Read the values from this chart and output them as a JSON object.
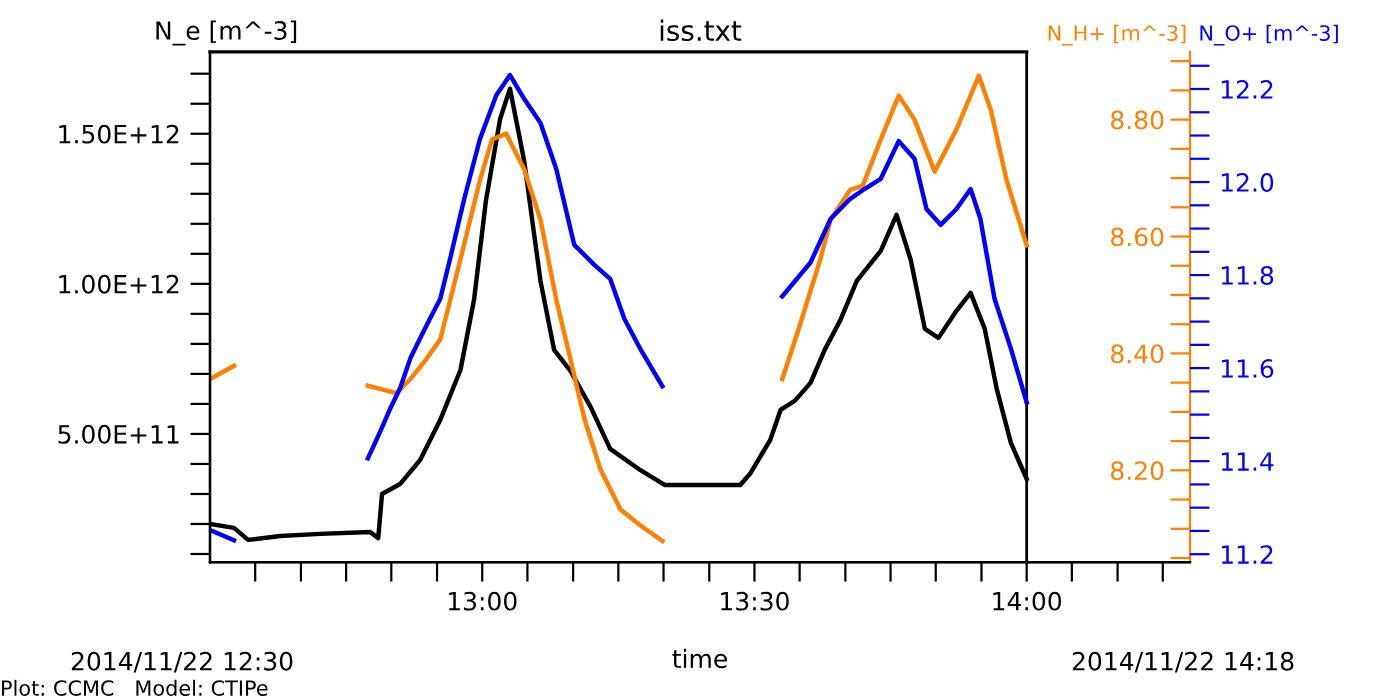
{
  "chart_data": {
    "type": "line",
    "title": "iss.txt",
    "xlabel": "time",
    "ylabel": "N_e [m^-3]",
    "y2label": "N_H+ [m^-3]",
    "y3label": "N_O+ [m^-3]",
    "annotations": [
      "2014/11/22 12:30",
      "2014/11/22 14:18",
      "Plot: CCMC   Model: CTIPe"
    ],
    "xlim": [
      12.5,
      14.3
    ],
    "xticks": [
      {
        "value": 12.583,
        "label": null
      },
      {
        "value": 12.667,
        "label": null
      },
      {
        "value": 12.75,
        "label": null
      },
      {
        "value": 12.833,
        "label": null
      },
      {
        "value": 12.917,
        "label": null
      },
      {
        "value": 13,
        "label": "13:00"
      },
      {
        "value": 13.083,
        "label": null
      },
      {
        "value": 13.167,
        "label": null
      },
      {
        "value": 13.25,
        "label": null
      },
      {
        "value": 13.333,
        "label": null
      },
      {
        "value": 13.417,
        "label": null
      },
      {
        "value": 13.5,
        "label": "13:30"
      },
      {
        "value": 13.583,
        "label": null
      },
      {
        "value": 13.667,
        "label": null
      },
      {
        "value": 13.75,
        "label": null
      },
      {
        "value": 13.833,
        "label": null
      },
      {
        "value": 13.917,
        "label": null
      },
      {
        "value": 14,
        "label": "14:00"
      },
      {
        "value": 14.083,
        "label": null
      },
      {
        "value": 14.167,
        "label": null
      },
      {
        "value": 14.25,
        "label": null
      }
    ],
    "ylim": [
      73000000000.0,
      1773000000000.0
    ],
    "yticks": [
      {
        "value": 100000000000.0,
        "label": null
      },
      {
        "value": 200000000000.0,
        "label": null
      },
      {
        "value": 300000000000.0,
        "label": null
      },
      {
        "value": 400000000000.0,
        "label": null
      },
      {
        "value": 500000000000.0,
        "label": "5.00E+11"
      },
      {
        "value": 600000000000.0,
        "label": null
      },
      {
        "value": 700000000000.0,
        "label": null
      },
      {
        "value": 800000000000.0,
        "label": null
      },
      {
        "value": 900000000000.0,
        "label": null
      },
      {
        "value": 1000000000000.0,
        "label": "1.00E+12"
      },
      {
        "value": 1100000000000.0,
        "label": null
      },
      {
        "value": 1200000000000.0,
        "label": null
      },
      {
        "value": 1300000000000.0,
        "label": null
      },
      {
        "value": 1400000000000.0,
        "label": null
      },
      {
        "value": 1500000000000.0,
        "label": "1.50E+12"
      },
      {
        "value": 1600000000000.0,
        "label": null
      },
      {
        "value": 1700000000000.0,
        "label": null
      }
    ],
    "y2lim": [
      8.043,
      8.916
    ],
    "y2ticks": [
      {
        "value": 8.05,
        "label": null
      },
      {
        "value": 8.1,
        "label": null
      },
      {
        "value": 8.15,
        "label": null
      },
      {
        "value": 8.2,
        "label": "8.20"
      },
      {
        "value": 8.25,
        "label": null
      },
      {
        "value": 8.3,
        "label": null
      },
      {
        "value": 8.35,
        "label": null
      },
      {
        "value": 8.4,
        "label": "8.40"
      },
      {
        "value": 8.45,
        "label": null
      },
      {
        "value": 8.5,
        "label": null
      },
      {
        "value": 8.55,
        "label": null
      },
      {
        "value": 8.6,
        "label": "8.60"
      },
      {
        "value": 8.65,
        "label": null
      },
      {
        "value": 8.7,
        "label": null
      },
      {
        "value": 8.75,
        "label": null
      },
      {
        "value": 8.8,
        "label": "8.80"
      },
      {
        "value": 8.85,
        "label": null
      },
      {
        "value": 8.9,
        "label": null
      }
    ],
    "y3lim": [
      11.183,
      12.28
    ],
    "y3ticks": [
      11.2,
      {
        "value": 11.25,
        "label": null
      },
      {
        "value": 11.3,
        "label": null
      },
      {
        "value": 11.35,
        "label": null
      },
      11.4,
      {
        "value": 11.45,
        "label": null
      },
      {
        "value": 11.5,
        "label": null
      },
      {
        "value": 11.55,
        "label": null
      },
      11.6,
      {
        "value": 11.65,
        "label": null
      },
      {
        "value": 11.7,
        "label": null
      },
      {
        "value": 11.75,
        "label": null
      },
      11.8,
      {
        "value": 11.85,
        "label": null
      },
      {
        "value": 11.9,
        "label": null
      },
      {
        "value": 11.95,
        "label": null
      },
      {
        "value": 12.0,
        "label": "12.0"
      },
      {
        "value": 12.05,
        "label": null
      },
      {
        "value": 12.1,
        "label": null
      },
      {
        "value": 12.15,
        "label": null
      },
      12.2,
      {
        "value": 12.25,
        "label": null
      }
    ],
    "ref_lines": [
      {
        "axis": "x",
        "value": 14.0,
        "color": "#000000"
      }
    ],
    "series": [
      {
        "axis": "y",
        "color": "#000000",
        "x": [
          12.5,
          12.544,
          12.57,
          12.629,
          12.702,
          12.794,
          12.809,
          12.816,
          12.849,
          12.886,
          12.923,
          12.96,
          12.985,
          13.007,
          13.033,
          13.051,
          13.077,
          13.107,
          13.132,
          13.162,
          13.199,
          13.235,
          13.29,
          13.335,
          13.474,
          13.493,
          13.529,
          13.548,
          13.574,
          13.603,
          13.629,
          13.658,
          13.688,
          13.732,
          13.761,
          13.787,
          13.813,
          13.838,
          13.871,
          13.897,
          13.923,
          13.945,
          13.971,
          14.0
        ],
        "values": [
          200000000000.0,
          187000000000.0,
          147000000000.0,
          160000000000.0,
          167000000000.0,
          173000000000.0,
          153000000000.0,
          300000000000.0,
          333000000000.0,
          413000000000.0,
          547000000000.0,
          713000000000.0,
          947000000000.0,
          1280000000000.0,
          1550000000000.0,
          1650000000000.0,
          1410000000000.0,
          1010000000000.0,
          780000000000.0,
          710000000000.0,
          590000000000.0,
          450000000000.0,
          380000000000.0,
          330000000000.0,
          330000000000.0,
          370000000000.0,
          480000000000.0,
          580000000000.0,
          610000000000.0,
          670000000000.0,
          780000000000.0,
          880000000000.0,
          1010000000000.0,
          1110000000000.0,
          1230000000000.0,
          1080000000000.0,
          850000000000.0,
          820000000000.0,
          910000000000.0,
          970000000000.0,
          850000000000.0,
          650000000000.0,
          470000000000.0,
          350000000000.0
        ]
      },
      {
        "axis": "y2",
        "color": "#ff7f00",
        "x": [
          12.5,
          12.544,
          12.6,
          12.79,
          12.842,
          12.868,
          12.897,
          12.923,
          12.96,
          12.996,
          13.018,
          13.044,
          13.077,
          13.107,
          13.136,
          13.162,
          13.188,
          13.217,
          13.254,
          13.29,
          13.331,
          13.45,
          13.551,
          13.581,
          13.621,
          13.64,
          13.676,
          13.699,
          13.732,
          13.765,
          13.794,
          13.831,
          13.871,
          13.912,
          13.934,
          13.963,
          14.0
        ],
        "values": [
          8.356,
          8.379,
          null,
          8.345,
          8.332,
          8.356,
          8.39,
          8.424,
          8.561,
          8.697,
          8.766,
          8.776,
          8.715,
          8.629,
          8.492,
          8.39,
          8.287,
          8.202,
          8.133,
          8.106,
          8.079,
          null,
          8.356,
          8.441,
          8.561,
          8.629,
          8.68,
          8.687,
          8.766,
          8.841,
          8.8,
          8.711,
          8.783,
          8.875,
          8.817,
          8.697,
          8.585
        ]
      },
      {
        "axis": "y3",
        "color": "#0000ff",
        "x": [
          12.5,
          12.544,
          12.6,
          12.79,
          12.812,
          12.831,
          12.849,
          12.868,
          12.886,
          12.904,
          12.923,
          12.941,
          12.967,
          12.996,
          13.026,
          13.051,
          13.077,
          13.107,
          13.136,
          13.169,
          13.206,
          13.235,
          13.261,
          13.29,
          13.331,
          13.45,
          13.551,
          13.603,
          13.64,
          13.676,
          13.702,
          13.732,
          13.765,
          13.794,
          13.816,
          13.842,
          13.871,
          13.897,
          13.915,
          13.941,
          13.971,
          14.0
        ],
        "values": [
          11.252,
          11.23,
          null,
          11.406,
          11.462,
          11.513,
          11.556,
          11.621,
          11.664,
          11.706,
          11.749,
          11.835,
          11.964,
          12.093,
          12.187,
          12.23,
          12.179,
          12.127,
          12.028,
          11.865,
          11.822,
          11.792,
          11.706,
          11.642,
          11.561,
          null,
          11.754,
          11.827,
          11.921,
          11.964,
          11.985,
          12.007,
          12.088,
          12.05,
          11.942,
          11.908,
          11.942,
          11.985,
          11.921,
          11.749,
          11.642,
          11.526
        ]
      }
    ]
  }
}
